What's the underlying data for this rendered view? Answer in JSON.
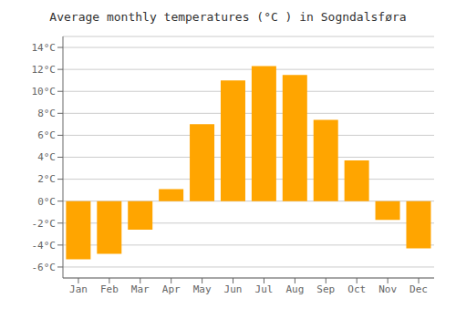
{
  "chart_data": {
    "type": "bar",
    "title": "Average monthly temperatures (°C ) in Sogndalsføra",
    "categories": [
      "Jan",
      "Feb",
      "Mar",
      "Apr",
      "May",
      "Jun",
      "Jul",
      "Aug",
      "Sep",
      "Oct",
      "Nov",
      "Dec"
    ],
    "values": [
      -5.3,
      -4.8,
      -2.6,
      1.1,
      7.0,
      11.0,
      12.3,
      11.5,
      7.4,
      3.7,
      -1.7,
      -4.3
    ],
    "color": "#FFA500",
    "ylim": [
      -7,
      15
    ],
    "yticks": [
      {
        "value": -6,
        "label": "-6°C"
      },
      {
        "value": -4,
        "label": "-4°C"
      },
      {
        "value": -2,
        "label": "-2°C"
      },
      {
        "value": 0,
        "label": "0°C"
      },
      {
        "value": 2,
        "label": "2°C"
      },
      {
        "value": 4,
        "label": "4°C"
      },
      {
        "value": 6,
        "label": "6°C"
      },
      {
        "value": 8,
        "label": "8°C"
      },
      {
        "value": 10,
        "label": "10°C"
      },
      {
        "value": 12,
        "label": "12°C"
      },
      {
        "value": 14,
        "label": "14°C"
      }
    ],
    "grid": true
  }
}
